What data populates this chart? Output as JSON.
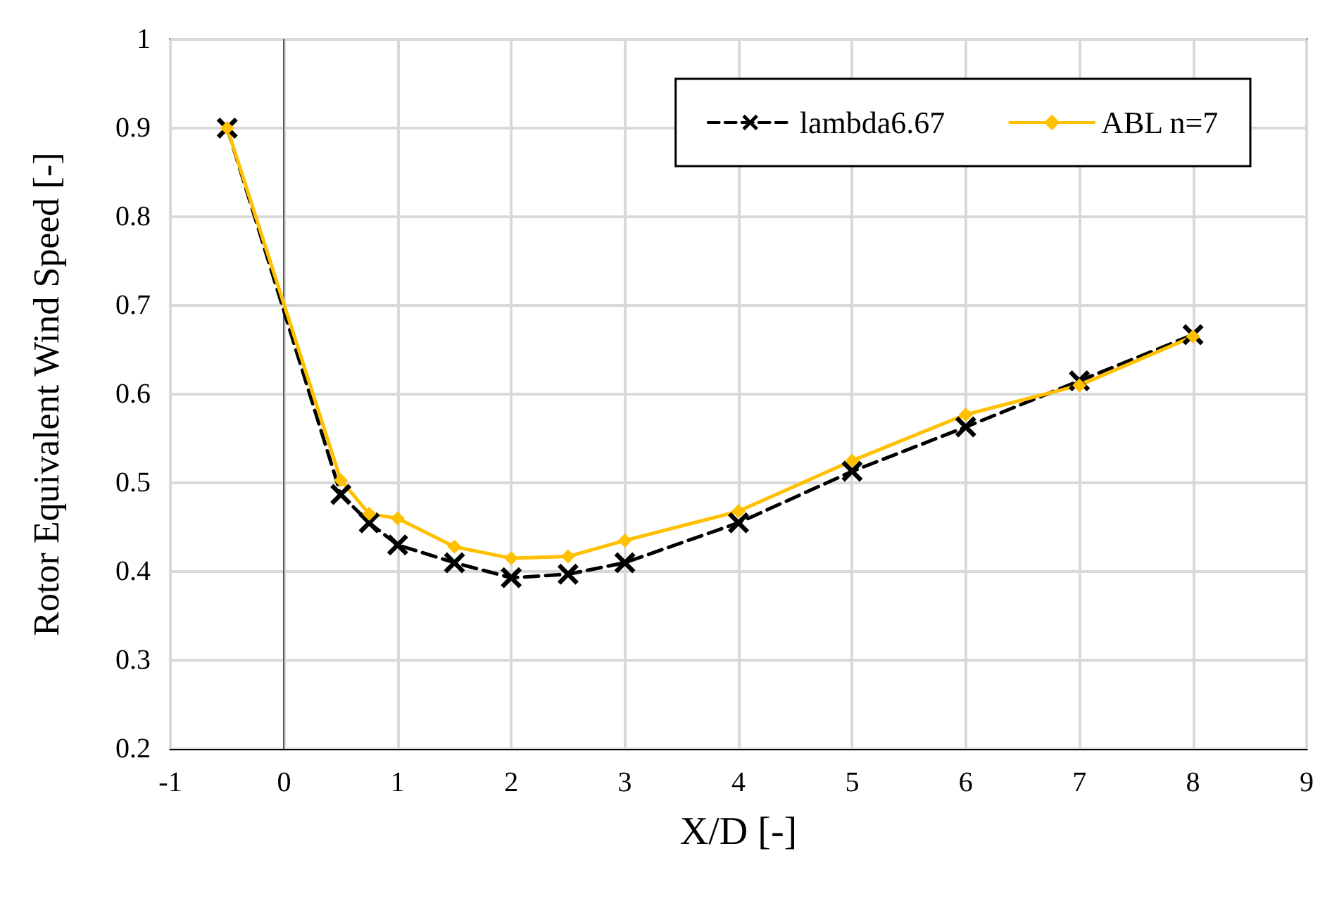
{
  "chart_data": {
    "type": "line",
    "xlabel": "X/D [-]",
    "ylabel": "Rotor Equivalent Wind Speed [-]",
    "xlim": [
      -1,
      9
    ],
    "xticks": [
      -1,
      0,
      1,
      2,
      3,
      4,
      5,
      6,
      7,
      8,
      9
    ],
    "ylim": [
      0.2,
      1
    ],
    "yticks": [
      0.2,
      0.3,
      0.4,
      0.5,
      0.6,
      0.7,
      0.8,
      0.9,
      1
    ],
    "grid": true,
    "legend": "top right",
    "series": [
      {
        "name": "lambda6.67",
        "color": "#000000",
        "marker": "cross",
        "line_style": "dashed",
        "x": [
          -0.5,
          0.5,
          0.75,
          1,
          1.5,
          2,
          2.5,
          3,
          4,
          5,
          6,
          7,
          8
        ],
        "values": [
          0.9,
          0.487,
          0.455,
          0.43,
          0.41,
          0.393,
          0.397,
          0.41,
          0.455,
          0.513,
          0.563,
          0.615,
          0.667
        ]
      },
      {
        "name": "ABL n=7",
        "color": "#ffc000",
        "marker": "diamond",
        "line_style": "solid",
        "x": [
          -0.5,
          0.5,
          0.75,
          1,
          1.5,
          2,
          2.5,
          3,
          4,
          5,
          6,
          7,
          8
        ],
        "values": [
          0.9,
          0.503,
          0.465,
          0.46,
          0.428,
          0.415,
          0.417,
          0.435,
          0.468,
          0.525,
          0.577,
          0.61,
          0.665
        ]
      }
    ]
  }
}
